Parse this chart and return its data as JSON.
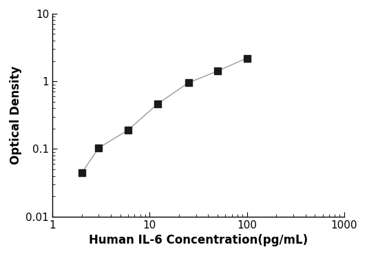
{
  "x": [
    2,
    3,
    6,
    12,
    25,
    50,
    100
  ],
  "y": [
    0.044,
    0.104,
    0.19,
    0.46,
    0.95,
    1.42,
    2.2
  ],
  "xlabel": "Human IL-6 Concentration(pg/mL)",
  "ylabel": "Optical Density",
  "xlim": [
    1,
    1000
  ],
  "ylim": [
    0.01,
    10
  ],
  "xticks": [
    1,
    10,
    100,
    1000
  ],
  "yticks": [
    0.01,
    0.1,
    1,
    10
  ],
  "line_color": "#999999",
  "marker_color": "#1a1a1a",
  "marker_edge_color": "#1a1a1a",
  "marker": "s",
  "marker_size": 7,
  "line_width": 1.0,
  "background_color": "#ffffff",
  "xlabel_fontsize": 12,
  "ylabel_fontsize": 12,
  "tick_fontsize": 11,
  "tick_label_color": "#000000"
}
